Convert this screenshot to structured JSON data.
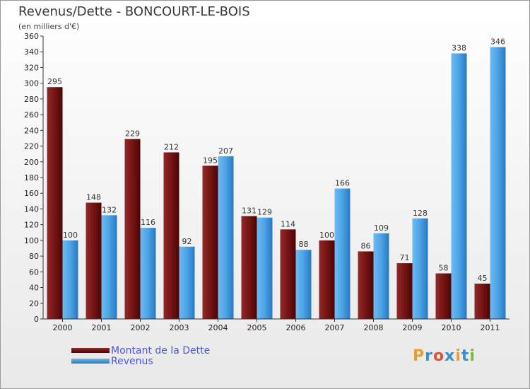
{
  "header": {
    "title": "Revenus/Dette - BONCOURT-LE-BOIS",
    "subtitle": "(en milliers d'€)"
  },
  "legend": {
    "items": [
      {
        "label": "Montant de la Dette",
        "color": "#7a1010"
      },
      {
        "label": "Revenus",
        "color": "#4aa3e6"
      }
    ]
  },
  "logo": {
    "text": "Proxiti",
    "colors": [
      "#e8a030",
      "#3a8fd0",
      "#e0503a",
      "#3a8fd0",
      "#e8a030",
      "#3a8fd0",
      "#80b830"
    ]
  },
  "colors": {
    "dette": "#7a1010",
    "revenus": "#4aa3e6",
    "axis": "#333333",
    "grid": "#bbbbbb"
  },
  "chart_data": {
    "type": "bar",
    "title": "Revenus/Dette - BONCOURT-LE-BOIS",
    "subtitle": "(en milliers d'€)",
    "xlabel": "",
    "ylabel": "",
    "categories": [
      "2000",
      "2001",
      "2002",
      "2003",
      "2004",
      "2005",
      "2006",
      "2007",
      "2008",
      "2009",
      "2010",
      "2011"
    ],
    "series": [
      {
        "name": "Montant de la Dette",
        "values": [
          295,
          148,
          229,
          212,
          195,
          131,
          114,
          100,
          86,
          71,
          58,
          45
        ]
      },
      {
        "name": "Revenus",
        "values": [
          100,
          132,
          116,
          92,
          207,
          129,
          88,
          166,
          109,
          128,
          338,
          346
        ]
      }
    ],
    "ylim": [
      0,
      360
    ],
    "yticks": [
      0,
      20,
      40,
      60,
      80,
      100,
      120,
      140,
      160,
      180,
      200,
      220,
      240,
      260,
      280,
      300,
      320,
      340,
      360
    ],
    "grid": false,
    "legend_position": "bottom-left"
  }
}
